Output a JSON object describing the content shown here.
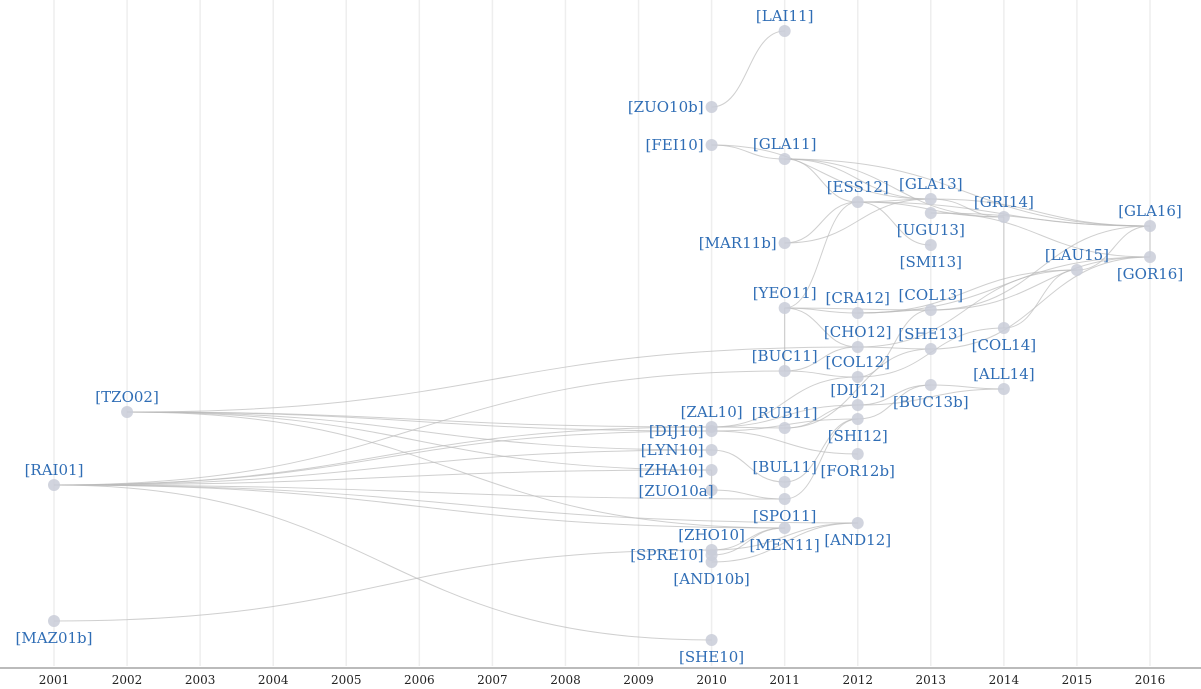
{
  "axis": {
    "ticks": [
      2001,
      2002,
      2003,
      2004,
      2005,
      2006,
      2007,
      2008,
      2009,
      2010,
      2011,
      2012,
      2013,
      2014,
      2015,
      2016
    ],
    "xlim": [
      2000.26,
      2016.7
    ]
  },
  "nodes": [
    {
      "label": "[LAI11]",
      "year": 2011
    },
    {
      "label": "[ZUO10b]",
      "year": 2010
    },
    {
      "label": "[FEI10]",
      "year": 2010
    },
    {
      "label": "[GLA11]",
      "year": 2011
    },
    {
      "label": "[ESS12]",
      "year": 2012
    },
    {
      "label": "[GLA13]",
      "year": 2013
    },
    {
      "label": "[GRI14]",
      "year": 2014
    },
    {
      "label": "[GLA16]",
      "year": 2016
    },
    {
      "label": "[UGU13]",
      "year": 2013
    },
    {
      "label": "[MAR11b]",
      "year": 2011
    },
    {
      "label": "[SMI13]",
      "year": 2013
    },
    {
      "label": "[LAU15]",
      "year": 2015
    },
    {
      "label": "[GOR16]",
      "year": 2016
    },
    {
      "label": "[YEO11]",
      "year": 2011
    },
    {
      "label": "[CRA12]",
      "year": 2012
    },
    {
      "label": "[COL13]",
      "year": 2013
    },
    {
      "label": "[COL14]",
      "year": 2014
    },
    {
      "label": "[CHO12]",
      "year": 2012
    },
    {
      "label": "[SHE13]",
      "year": 2013
    },
    {
      "label": "[BUC11]",
      "year": 2011
    },
    {
      "label": "[COL12]",
      "year": 2012
    },
    {
      "label": "[ALL14]",
      "year": 2014
    },
    {
      "label": "[DIJ12]",
      "year": 2012
    },
    {
      "label": "[BUC13b]",
      "year": 2013
    },
    {
      "label": "[TZO02]",
      "year": 2002
    },
    {
      "label": "[ZAL10]",
      "year": 2010
    },
    {
      "label": "[RUB11]",
      "year": 2011
    },
    {
      "label": "[DIJ10]",
      "year": 2010
    },
    {
      "label": "[SHI12]",
      "year": 2012
    },
    {
      "label": "[LYN10]",
      "year": 2010
    },
    {
      "label": "[ZHA10]",
      "year": 2010
    },
    {
      "label": "[BUL11]",
      "year": 2011
    },
    {
      "label": "[FOR12b]",
      "year": 2012
    },
    {
      "label": "[RAI01]",
      "year": 2001
    },
    {
      "label": "[ZUO10a]",
      "year": 2010
    },
    {
      "label": "[SPO11]",
      "year": 2011
    },
    {
      "label": "[AND12]",
      "year": 2012
    },
    {
      "label": "[ZHO10]",
      "year": 2010
    },
    {
      "label": "[MEN11]",
      "year": 2011
    },
    {
      "label": "[SPRE10]",
      "year": 2010
    },
    {
      "label": "[AND10b]",
      "year": 2010
    },
    {
      "label": "[MAZ01b]",
      "year": 2001
    },
    {
      "label": "[SHE10]",
      "year": 2010
    }
  ],
  "edges": [
    [
      1,
      0
    ],
    [
      2,
      3
    ],
    [
      2,
      5
    ],
    [
      3,
      4
    ],
    [
      3,
      5
    ],
    [
      3,
      6
    ],
    [
      3,
      7
    ],
    [
      4,
      5
    ],
    [
      4,
      6
    ],
    [
      4,
      7
    ],
    [
      4,
      10
    ],
    [
      5,
      7
    ],
    [
      5,
      6
    ],
    [
      8,
      7
    ],
    [
      8,
      12
    ],
    [
      9,
      4
    ],
    [
      9,
      5
    ],
    [
      13,
      4
    ],
    [
      13,
      14
    ],
    [
      13,
      15
    ],
    [
      13,
      17
    ],
    [
      14,
      15
    ],
    [
      14,
      11
    ],
    [
      14,
      12
    ],
    [
      15,
      12
    ],
    [
      15,
      7
    ],
    [
      16,
      6
    ],
    [
      16,
      11
    ],
    [
      17,
      18
    ],
    [
      17,
      11
    ],
    [
      18,
      12
    ],
    [
      19,
      13
    ],
    [
      19,
      17
    ],
    [
      20,
      15
    ],
    [
      20,
      16
    ],
    [
      22,
      23
    ],
    [
      23,
      21
    ],
    [
      24,
      25
    ],
    [
      24,
      27
    ],
    [
      24,
      29
    ],
    [
      24,
      30
    ],
    [
      24,
      17
    ],
    [
      24,
      38
    ],
    [
      25,
      26
    ],
    [
      25,
      20
    ],
    [
      25,
      22
    ],
    [
      26,
      22
    ],
    [
      27,
      32
    ],
    [
      27,
      28
    ],
    [
      29,
      31
    ],
    [
      30,
      34
    ],
    [
      33,
      25
    ],
    [
      33,
      27
    ],
    [
      33,
      29
    ],
    [
      33,
      30
    ],
    [
      33,
      35
    ],
    [
      33,
      36
    ],
    [
      33,
      38
    ],
    [
      33,
      42
    ],
    [
      33,
      19
    ],
    [
      34,
      35
    ],
    [
      37,
      38
    ],
    [
      37,
      36
    ],
    [
      39,
      38
    ],
    [
      41,
      37
    ],
    [
      40,
      36
    ],
    [
      31,
      28
    ],
    [
      35,
      28
    ],
    [
      26,
      18
    ],
    [
      28,
      23
    ],
    [
      22,
      21
    ],
    [
      19,
      20
    ],
    [
      12,
      7
    ],
    [
      11,
      7
    ]
  ]
}
